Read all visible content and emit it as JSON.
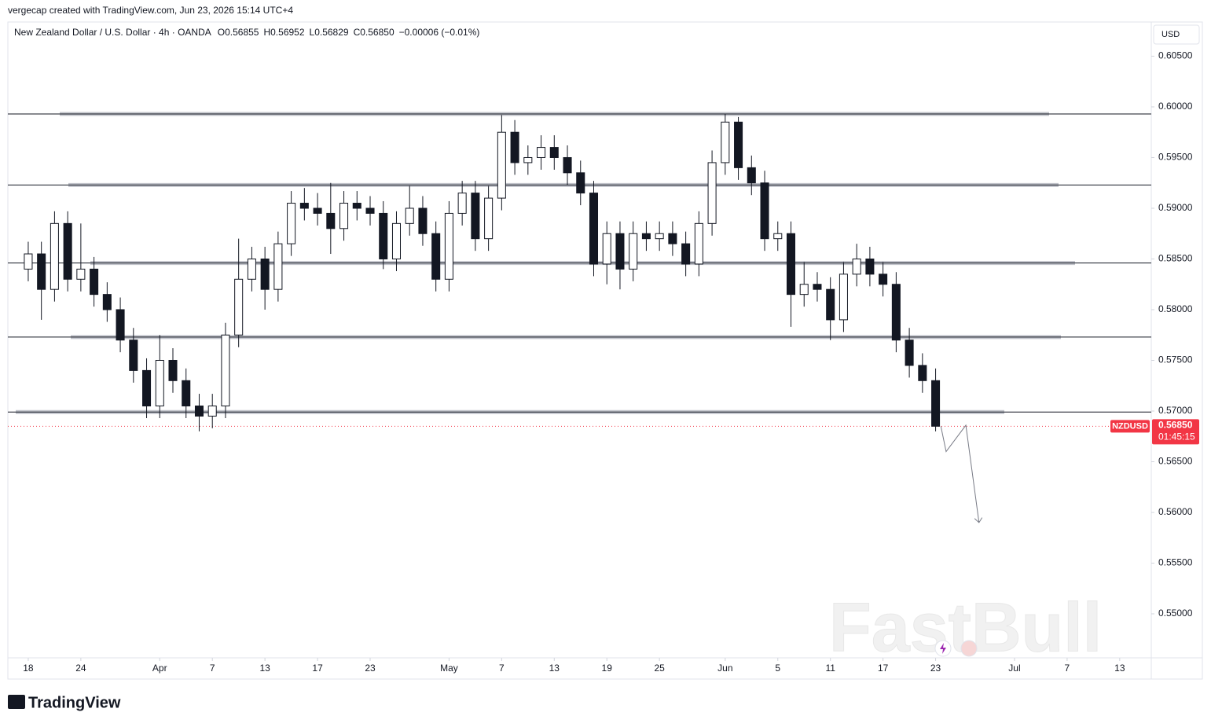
{
  "header": "vergecap created with TradingView.com, Jun 23, 2026 15:14 UTC+4",
  "logo": "TradingView",
  "watermark": "FastBull",
  "chart_data": {
    "type": "candlestick",
    "symbol_info": "New Zealand Dollar / U.S. Dollar · 4h · OANDA",
    "ohlc_legend": [
      "O0.56855",
      "H0.56952",
      "L0.56829",
      "C0.56850",
      "−0.00006 (−0.01%)"
    ],
    "currency": "USD",
    "symbol": "NZDUSD",
    "countdown": "01:45:15",
    "last_price": {
      "value": 0.5685,
      "label": "0.56850"
    },
    "up_color": "#ffffff",
    "down_color": "#131722",
    "wick_color": "#131722",
    "x": [
      0,
      1,
      2,
      3,
      4,
      5,
      6,
      7,
      8,
      9,
      10,
      11,
      12,
      13,
      14,
      15,
      16,
      17,
      18,
      19,
      20,
      21,
      22,
      23,
      24,
      25,
      26,
      27,
      28,
      29,
      30,
      31,
      32,
      33,
      34,
      35,
      36,
      37,
      38,
      39,
      40,
      41,
      42,
      43,
      44,
      45,
      46,
      47,
      48,
      49,
      50,
      51,
      52,
      53,
      54,
      55,
      56,
      57,
      58,
      59,
      60,
      61,
      62,
      63,
      64,
      65,
      66,
      67,
      68,
      69
    ],
    "open": [
      0.584,
      0.5855,
      0.582,
      0.5885,
      0.583,
      0.584,
      0.5815,
      0.58,
      0.577,
      0.574,
      0.5705,
      0.575,
      0.573,
      0.5705,
      0.5695,
      0.5705,
      0.5775,
      0.583,
      0.585,
      0.582,
      0.5865,
      0.5905,
      0.59,
      0.5895,
      0.588,
      0.5905,
      0.59,
      0.5895,
      0.585,
      0.5885,
      0.59,
      0.5875,
      0.583,
      0.5895,
      0.5915,
      0.587,
      0.591,
      0.5975,
      0.5945,
      0.595,
      0.596,
      0.595,
      0.5935,
      0.5915,
      0.5845,
      0.5875,
      0.584,
      0.5875,
      0.587,
      0.5875,
      0.5865,
      0.5845,
      0.5885,
      0.5945,
      0.5985,
      0.594,
      0.5925,
      0.587,
      0.5875,
      0.5815,
      0.5825,
      0.582,
      0.579,
      0.5835,
      0.585,
      0.5835,
      0.5825,
      0.577,
      0.5745,
      0.573
    ],
    "high": [
      0.5867,
      0.5867,
      0.5897,
      0.5897,
      0.5885,
      0.5852,
      0.5827,
      0.5812,
      0.5782,
      0.5752,
      0.5775,
      0.5762,
      0.5742,
      0.5717,
      0.5717,
      0.5787,
      0.587,
      0.5862,
      0.5862,
      0.5877,
      0.5917,
      0.592,
      0.5915,
      0.5925,
      0.5917,
      0.5917,
      0.5912,
      0.5907,
      0.5897,
      0.5922,
      0.5912,
      0.5887,
      0.5907,
      0.5927,
      0.5927,
      0.5922,
      0.5992,
      0.5987,
      0.5962,
      0.5972,
      0.5972,
      0.5962,
      0.5947,
      0.5927,
      0.5887,
      0.5887,
      0.5887,
      0.5887,
      0.5887,
      0.5887,
      0.5877,
      0.5897,
      0.5957,
      0.5993,
      0.599,
      0.5952,
      0.5937,
      0.5887,
      0.5887,
      0.5847,
      0.5837,
      0.5832,
      0.5847,
      0.5865,
      0.5862,
      0.5847,
      0.5837,
      0.5782,
      0.5757,
      0.5742
    ],
    "low": [
      0.5828,
      0.579,
      0.5808,
      0.5818,
      0.5818,
      0.5803,
      0.5788,
      0.5758,
      0.5728,
      0.5693,
      0.5693,
      0.5718,
      0.5693,
      0.568,
      0.5683,
      0.5693,
      0.5763,
      0.5818,
      0.58,
      0.5808,
      0.5853,
      0.5888,
      0.5883,
      0.5855,
      0.5868,
      0.5888,
      0.5883,
      0.584,
      0.5838,
      0.5873,
      0.5863,
      0.5818,
      0.5818,
      0.5883,
      0.5858,
      0.5858,
      0.5898,
      0.5933,
      0.5933,
      0.5938,
      0.5938,
      0.5923,
      0.5903,
      0.5833,
      0.5825,
      0.582,
      0.5828,
      0.5858,
      0.5858,
      0.5853,
      0.5833,
      0.5833,
      0.5873,
      0.5933,
      0.5928,
      0.5913,
      0.5858,
      0.5858,
      0.5783,
      0.5803,
      0.5808,
      0.577,
      0.5778,
      0.5823,
      0.5823,
      0.5813,
      0.5758,
      0.5733,
      0.5718,
      0.568
    ],
    "close": [
      0.5855,
      0.582,
      0.5885,
      0.583,
      0.584,
      0.5815,
      0.58,
      0.577,
      0.574,
      0.5705,
      0.575,
      0.573,
      0.5705,
      0.5695,
      0.5705,
      0.5775,
      0.583,
      0.585,
      0.582,
      0.5865,
      0.5905,
      0.59,
      0.5895,
      0.588,
      0.5905,
      0.59,
      0.5895,
      0.585,
      0.5885,
      0.59,
      0.5875,
      0.583,
      0.5895,
      0.5915,
      0.587,
      0.591,
      0.5975,
      0.5945,
      0.595,
      0.596,
      0.595,
      0.5935,
      0.5915,
      0.5845,
      0.5875,
      0.584,
      0.5875,
      0.587,
      0.5875,
      0.5865,
      0.5845,
      0.5885,
      0.5945,
      0.5985,
      0.594,
      0.5925,
      0.587,
      0.5875,
      0.5815,
      0.5825,
      0.582,
      0.579,
      0.5835,
      0.585,
      0.5835,
      0.5825,
      0.577,
      0.5745,
      0.573,
      0.5685
    ],
    "levels": [
      0.5993,
      0.5923,
      0.5846,
      0.5773,
      0.5699
    ],
    "projection": {
      "x": [
        69.4,
        69.8,
        71.3,
        72.3
      ],
      "y": [
        0.5685,
        0.566,
        0.5686,
        0.559
      ]
    },
    "xlim": [
      -1.55,
      85.4
    ],
    "ylim": [
      0.54566,
      0.60837
    ],
    "xticks": [
      {
        "value": 0,
        "label": "18"
      },
      {
        "value": 4,
        "label": "24"
      },
      {
        "value": 10,
        "label": "Apr"
      },
      {
        "value": 14,
        "label": "7"
      },
      {
        "value": 18,
        "label": "13"
      },
      {
        "value": 22,
        "label": "17"
      },
      {
        "value": 26,
        "label": "23"
      },
      {
        "value": 32,
        "label": "May"
      },
      {
        "value": 36,
        "label": "7"
      },
      {
        "value": 40,
        "label": "13"
      },
      {
        "value": 44,
        "label": "19"
      },
      {
        "value": 48,
        "label": "25"
      },
      {
        "value": 53,
        "label": "Jun"
      },
      {
        "value": 57,
        "label": "5"
      },
      {
        "value": 61,
        "label": "11"
      },
      {
        "value": 65,
        "label": "17"
      },
      {
        "value": 69,
        "label": "23"
      },
      {
        "value": 75,
        "label": "Jul"
      },
      {
        "value": 79,
        "label": "7"
      },
      {
        "value": 83,
        "label": "13"
      }
    ],
    "yticks": [
      {
        "value": 0.605,
        "label": "0.60500"
      },
      {
        "value": 0.6,
        "label": "0.60000"
      },
      {
        "value": 0.595,
        "label": "0.59500"
      },
      {
        "value": 0.59,
        "label": "0.59000"
      },
      {
        "value": 0.585,
        "label": "0.58500"
      },
      {
        "value": 0.58,
        "label": "0.58000"
      },
      {
        "value": 0.575,
        "label": "0.57500"
      },
      {
        "value": 0.57,
        "label": "0.57000"
      },
      {
        "value": 0.565,
        "label": "0.56500"
      },
      {
        "value": 0.56,
        "label": "0.56000"
      },
      {
        "value": 0.555,
        "label": "0.55500"
      },
      {
        "value": 0.55,
        "label": "0.55000"
      }
    ]
  }
}
